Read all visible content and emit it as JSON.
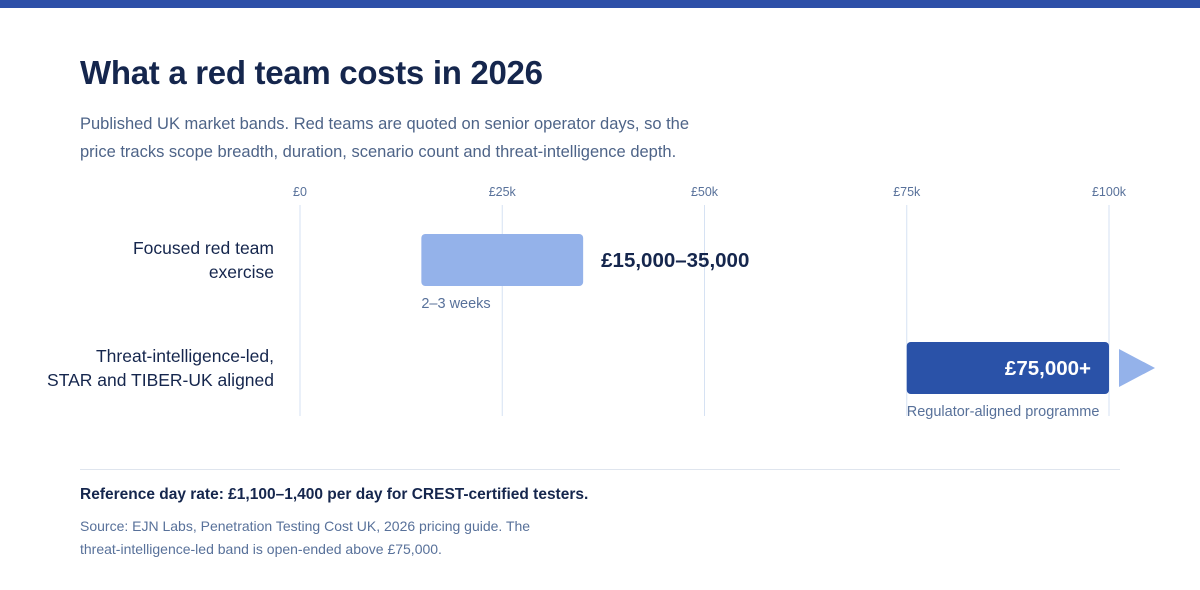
{
  "colors": {
    "top_bar": "#2d4fa8",
    "title": "#15264d",
    "gridline": "#d6e2f3",
    "tick_label": "#58719a",
    "category_label": "#15264d",
    "focused_bar": "#94b2ea",
    "tiber_bar": "#2a52a8",
    "bar_value_dark": "#15264d",
    "bar_value_light": "#ffffff",
    "arrow": "#94b2ea",
    "note": "#58719a"
  },
  "header": {
    "title": "What a red team costs in 2026",
    "subtitle_lines": [
      "Published UK market bands. Red teams are quoted on senior operator days, so the",
      "price tracks scope breadth, duration, scenario count and threat-intelligence depth."
    ]
  },
  "chart_data": {
    "type": "bar",
    "orientation": "horizontal-range",
    "title": "What a red team costs in 2026",
    "xlim": [
      0,
      100000
    ],
    "x_ticks": [
      {
        "value": 0,
        "label": "£0"
      },
      {
        "value": 25000,
        "label": "£25k"
      },
      {
        "value": 50000,
        "label": "£50k"
      },
      {
        "value": 75000,
        "label": "£75k"
      },
      {
        "value": 100000,
        "label": "£100k"
      }
    ],
    "grid": true,
    "legend": "none",
    "bars": [
      {
        "category_lines": [
          "Focused red team",
          "exercise"
        ],
        "start": 15000,
        "end": 35000,
        "open_ended": false,
        "value_label": "£15,000–35,000",
        "value_label_position": "outside-right",
        "note": "2–3 weeks"
      },
      {
        "category_lines": [
          "Threat-intelligence-led,",
          "STAR and TIBER-UK aligned"
        ],
        "start": 75000,
        "end": 100000,
        "open_ended": true,
        "value_label": "£75,000+",
        "value_label_position": "inside-right",
        "note": "Regulator-aligned programme"
      }
    ]
  },
  "footer": {
    "reference": "Reference day rate: £1,100–1,400 per day for CREST-certified testers.",
    "source_lines": [
      "Source: EJN Labs, Penetration Testing Cost UK, 2026 pricing guide. The",
      "threat-intelligence-led band is open-ended above £75,000."
    ]
  }
}
